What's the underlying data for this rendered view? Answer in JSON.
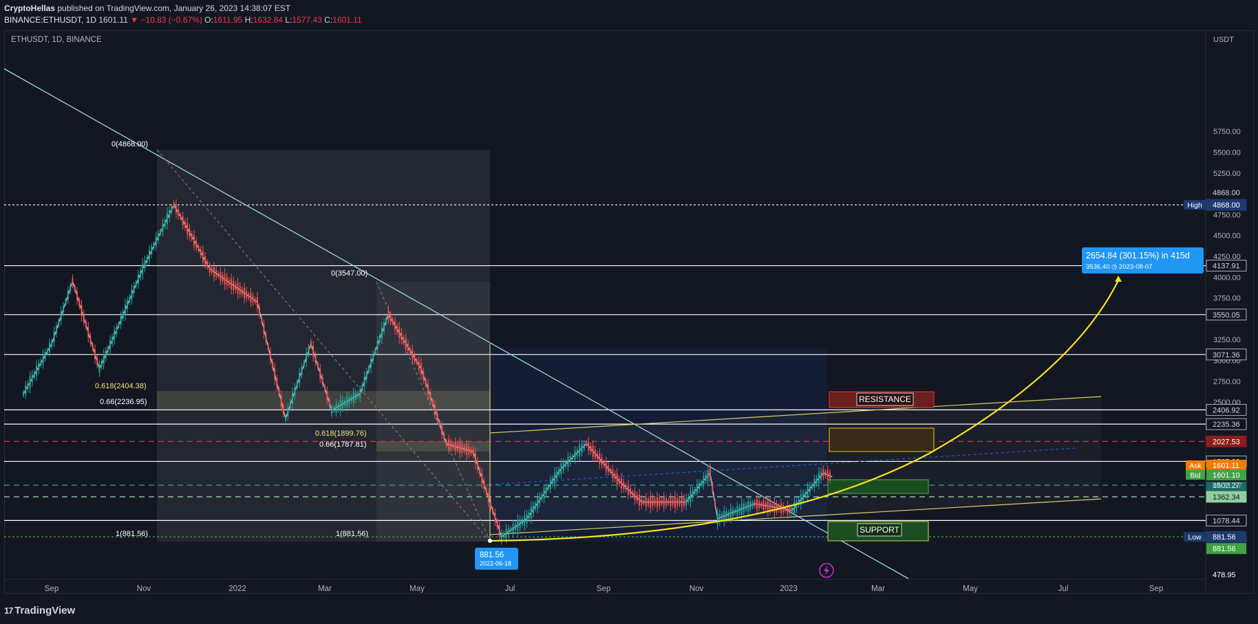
{
  "header": {
    "author": "CryptoHellas",
    "published_text": "published on TradingView.com, January 26, 2023 14:38:07 EST",
    "symbol": "BINANCE:ETHUSDT, 1D",
    "last": "1601.11",
    "change": "▼ −10.83 (−0.67%)",
    "o_label": "O:",
    "o_val": "1611.95",
    "h_label": "H:",
    "h_val": "1632.84",
    "l_label": "L:",
    "l_val": "1577.43",
    "c_label": "C:",
    "c_val": "1601.11"
  },
  "chart_title": "ETHUSDT, 1D, BINANCE",
  "footer": {
    "logo_text": "TradingView"
  },
  "chart_data": {
    "type": "candlestick",
    "symbol": "ETHUSDT",
    "interval": "1D",
    "exchange": "BINANCE",
    "currency_label": "USDT",
    "y_range": [
      478.95,
      5900
    ],
    "y_ticks": [
      5750,
      5500,
      5250,
      4750,
      4500,
      4250,
      4000,
      3750,
      3250,
      3000,
      2750,
      2500
    ],
    "x_ticks": [
      "Sep",
      "Nov",
      "2022",
      "Mar",
      "May",
      "Jul",
      "Sep",
      "Nov",
      "2023",
      "Mar",
      "May",
      "Jul",
      "Sep"
    ],
    "price_approx": [
      [
        "2021-08-01",
        2600
      ],
      [
        "2021-08-20",
        3200
      ],
      [
        "2021-09-03",
        3950
      ],
      [
        "2021-09-21",
        2900
      ],
      [
        "2021-10-01",
        3300
      ],
      [
        "2021-10-20",
        4100
      ],
      [
        "2021-11-10",
        4868
      ],
      [
        "2021-11-28",
        4300
      ],
      [
        "2021-12-04",
        4100
      ],
      [
        "2021-12-20",
        3900
      ],
      [
        "2022-01-05",
        3700
      ],
      [
        "2022-01-24",
        2300
      ],
      [
        "2022-02-10",
        3200
      ],
      [
        "2022-02-24",
        2400
      ],
      [
        "2022-03-15",
        2600
      ],
      [
        "2022-04-03",
        3550
      ],
      [
        "2022-04-25",
        2900
      ],
      [
        "2022-05-12",
        2000
      ],
      [
        "2022-05-30",
        1900
      ],
      [
        "2022-06-18",
        881.56
      ],
      [
        "2022-07-05",
        1100
      ],
      [
        "2022-07-28",
        1700
      ],
      [
        "2022-08-14",
        2000
      ],
      [
        "2022-09-05",
        1550
      ],
      [
        "2022-09-20",
        1300
      ],
      [
        "2022-10-20",
        1300
      ],
      [
        "2022-11-05",
        1650
      ],
      [
        "2022-11-10",
        1100
      ],
      [
        "2022-12-05",
        1280
      ],
      [
        "2022-12-30",
        1200
      ],
      [
        "2023-01-20",
        1650
      ],
      [
        "2023-01-26",
        1601.11
      ]
    ],
    "horizontal_levels": [
      {
        "label": "High",
        "value": "4868.00",
        "color": "#ffffff"
      },
      {
        "value": "4137.91",
        "color": "#ffffff"
      },
      {
        "value": "3550.05",
        "color": "#ffffff"
      },
      {
        "value": "3071.36",
        "color": "#ffffff"
      },
      {
        "value": "2406.92",
        "color": "#ffffff"
      },
      {
        "value": "2235.36",
        "color": "#ffffff"
      },
      {
        "value": "2027.53",
        "color": "#f23645"
      },
      {
        "value": "1787.38",
        "color": "#ffffff"
      },
      {
        "value": "1502.27",
        "color": "#26a69a"
      },
      {
        "value": "1362.34",
        "color": "#b9f6ca"
      },
      {
        "value": "1078.44",
        "color": "#ffffff"
      },
      {
        "label": "Low",
        "value": "881.56",
        "color": "#4caf50"
      }
    ],
    "price_labels": {
      "upper": "4868.00",
      "ask_label": "Ask",
      "ask": "1601.11",
      "last": "1601.11",
      "countdown": "04:21:57",
      "bid_label": "Bid",
      "bid": "1601.10",
      "low_tag": "881.56",
      "bottom": "478.95"
    },
    "fib_labels": [
      {
        "text": "0(4868.00)"
      },
      {
        "text": "0.618(2404.38)"
      },
      {
        "text": "0.66(2236.95)"
      },
      {
        "text": "1(881.56)"
      },
      {
        "text": "0(3547.00)"
      },
      {
        "text": "0.618(1899.76)"
      },
      {
        "text": "0.66(1787.81)"
      },
      {
        "text": "1(881.56)"
      }
    ],
    "zones": [
      {
        "label": "RESISTANCE",
        "color": "#f23645"
      },
      {
        "label": "SUPPORT",
        "color": "#4caf50"
      }
    ],
    "projection": {
      "line1": "2654.84 (301.15%) in 415d",
      "line2": "3536.40 ◷ 2023-08-07"
    },
    "low_point": {
      "line1": "881.56",
      "line2": "2022-06-18"
    }
  }
}
